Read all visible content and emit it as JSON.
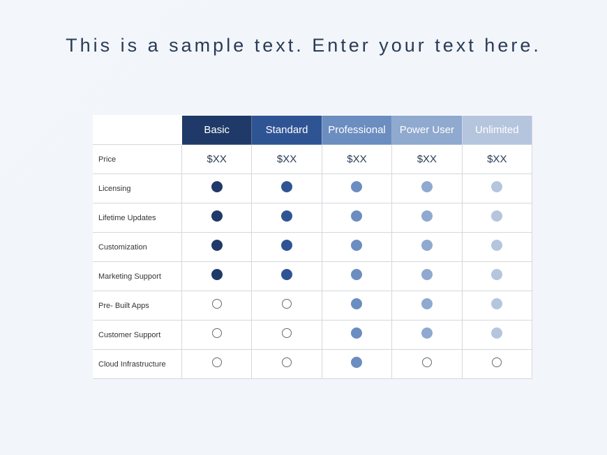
{
  "title": "This is a sample text. Enter your text here.",
  "plans": [
    {
      "label": "Basic",
      "header_bg": "#1f3a68",
      "dot_color": "#1f3a68"
    },
    {
      "label": "Standard",
      "header_bg": "#2f5494",
      "dot_color": "#2f5494"
    },
    {
      "label": "Professional",
      "header_bg": "#6b8dc0",
      "dot_color": "#6b8dc0"
    },
    {
      "label": "Power User",
      "header_bg": "#8fa9cf",
      "dot_color": "#8fa9cf"
    },
    {
      "label": "Unlimited",
      "header_bg": "#b5c5de",
      "dot_color": "#b5c5de"
    }
  ],
  "price_label": "Price",
  "prices": [
    "$XX",
    "$XX",
    "$XX",
    "$XX",
    "$XX"
  ],
  "features": [
    {
      "label": "Licensing",
      "cells": [
        "filled",
        "filled",
        "filled",
        "filled",
        "filled"
      ]
    },
    {
      "label": "Lifetime Updates",
      "cells": [
        "filled",
        "filled",
        "filled",
        "filled",
        "filled"
      ]
    },
    {
      "label": "Customization",
      "cells": [
        "filled",
        "filled",
        "filled",
        "filled",
        "filled"
      ]
    },
    {
      "label": "Marketing Support",
      "cells": [
        "filled",
        "filled",
        "filled",
        "filled",
        "filled"
      ]
    },
    {
      "label": "Pre- Built Apps",
      "cells": [
        "empty",
        "empty",
        "filled",
        "filled",
        "filled"
      ]
    },
    {
      "label": "Customer Support",
      "cells": [
        "empty",
        "empty",
        "filled",
        "filled",
        "filled"
      ]
    },
    {
      "label": "Cloud Infrastructure",
      "cells": [
        "empty",
        "empty",
        "filled",
        "empty",
        "empty"
      ]
    }
  ]
}
